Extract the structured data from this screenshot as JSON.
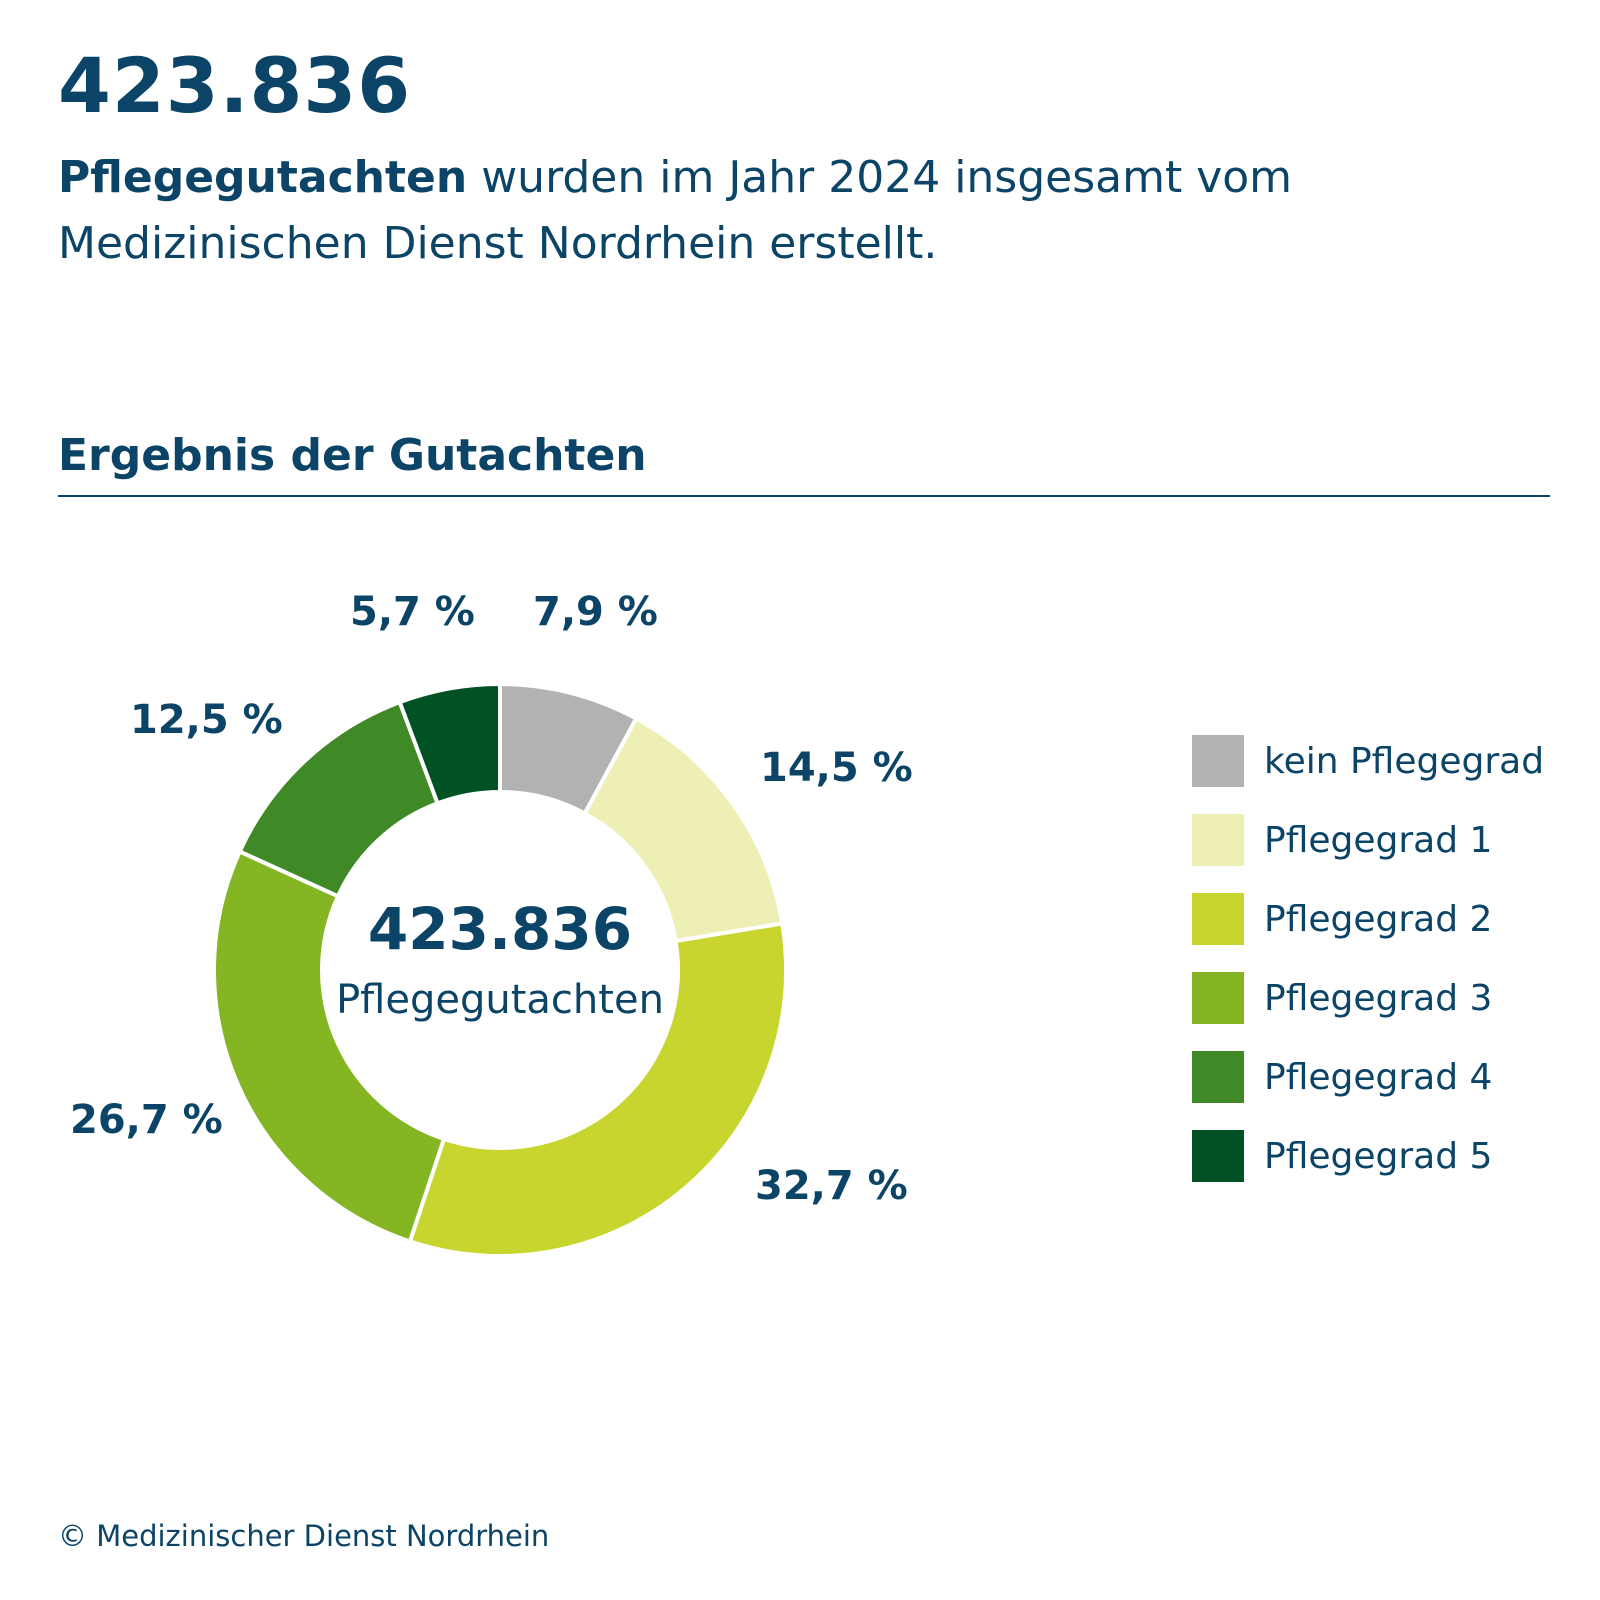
{
  "header": {
    "big_number": "423.836",
    "intro_bold": "Pflegegutachten",
    "intro_rest_line1": " wurden im Jahr 2024 insgesamt vom",
    "intro_line2": "Medizinischen Dienst Nordrhein erstellt."
  },
  "section": {
    "title": "Ergebnis der Gutachten"
  },
  "center": {
    "number": "423.836",
    "label": "Pflegegutachten"
  },
  "footer": {
    "copyright": "© Medizinischer Dienst Nordrhein"
  },
  "colors": {
    "text": "#0b4466"
  },
  "chart_data": {
    "type": "pie",
    "variant": "donut",
    "title": "Ergebnis der Gutachten",
    "center_text": [
      "423.836",
      "Pflegegutachten"
    ],
    "legend_placement": "right",
    "slices": [
      {
        "label": "kein Pflegegrad",
        "value": 7.9,
        "display": "7,9 %",
        "color": "#b2b2b2"
      },
      {
        "label": "Pflegegrad 1",
        "value": 14.5,
        "display": "14,5 %",
        "color": "#eeefb4"
      },
      {
        "label": "Pflegegrad 2",
        "value": 32.7,
        "display": "32,7 %",
        "color": "#c7d52e"
      },
      {
        "label": "Pflegegrad 3",
        "value": 26.7,
        "display": "26,7 %",
        "color": "#84b523"
      },
      {
        "label": "Pflegegrad 4",
        "value": 12.5,
        "display": "12,5 %",
        "color": "#3f8926"
      },
      {
        "label": "Pflegegrad 5",
        "value": 5.7,
        "display": "5,7 %",
        "color": "#005224"
      }
    ]
  }
}
